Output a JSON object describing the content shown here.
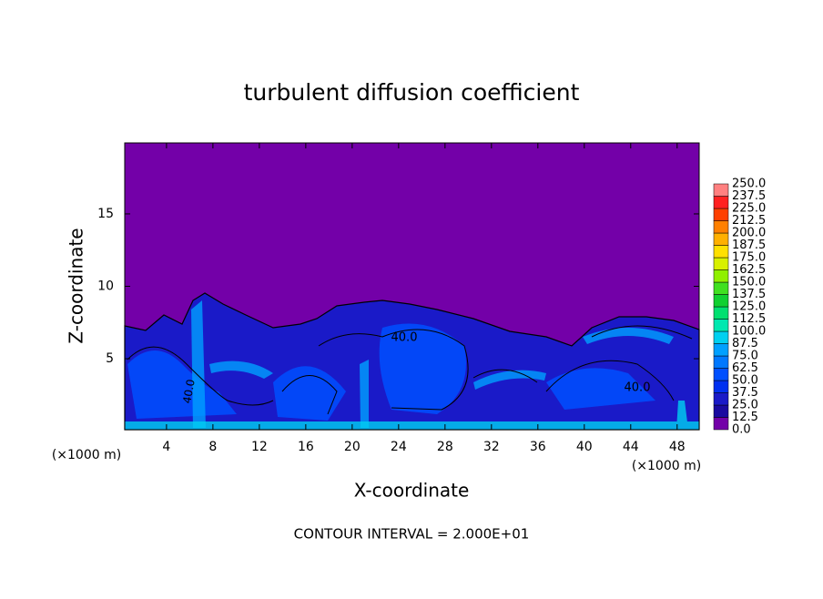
{
  "chart_data": {
    "type": "contour",
    "title": "turbulent diffusion coefficient",
    "x_label": "X-coordinate",
    "y_label": "Z-coordinate",
    "x_unit": "(×1000 m)",
    "y_unit": "(×1000 m)",
    "xlim": [
      0.4,
      49.9
    ],
    "ylim": [
      0.1,
      19.9
    ],
    "xticks": [
      4,
      8,
      12,
      16,
      20,
      24,
      28,
      32,
      36,
      40,
      44,
      48
    ],
    "yticks": [
      5,
      10,
      15
    ],
    "contour_labels": [
      "40.0",
      "40.0",
      "40.0"
    ],
    "contour_interval": "CONTOUR INTERVAL = 2.000E+01",
    "colorbar": {
      "ticks": [
        {
          "value": 0,
          "label": "0.0"
        },
        {
          "value": 12.5,
          "label": "12.5"
        },
        {
          "value": 25,
          "label": "25.0"
        },
        {
          "value": 37.5,
          "label": "37.5"
        },
        {
          "value": 50,
          "label": "50.0"
        },
        {
          "value": 62.5,
          "label": "62.5"
        },
        {
          "value": 75,
          "label": "75.0"
        },
        {
          "value": 87.5,
          "label": "87.5"
        },
        {
          "value": 100,
          "label": "100.0"
        },
        {
          "value": 112.5,
          "label": "112.5"
        },
        {
          "value": 125,
          "label": "125.0"
        },
        {
          "value": 137.5,
          "label": "137.5"
        },
        {
          "value": 150,
          "label": "150.0"
        },
        {
          "value": 162.5,
          "label": "162.5"
        },
        {
          "value": 175,
          "label": "175.0"
        },
        {
          "value": 187.5,
          "label": "187.5"
        },
        {
          "value": 200,
          "label": "200.0"
        },
        {
          "value": 212.5,
          "label": "212.5"
        },
        {
          "value": 225,
          "label": "225.0"
        },
        {
          "value": 237.5,
          "label": "237.5"
        },
        {
          "value": 250,
          "label": "250.0"
        }
      ],
      "colors": [
        "#7300a8",
        "#1a0aa0",
        "#1a1ac8",
        "#0030f0",
        "#0050ff",
        "#0078ff",
        "#00a0ff",
        "#00d0f0",
        "#00e8b0",
        "#00e070",
        "#10d030",
        "#40e020",
        "#90f000",
        "#d8f000",
        "#ffe000",
        "#ffb000",
        "#ff8000",
        "#ff4000",
        "#ff2020",
        "#ff8080"
      ]
    }
  }
}
